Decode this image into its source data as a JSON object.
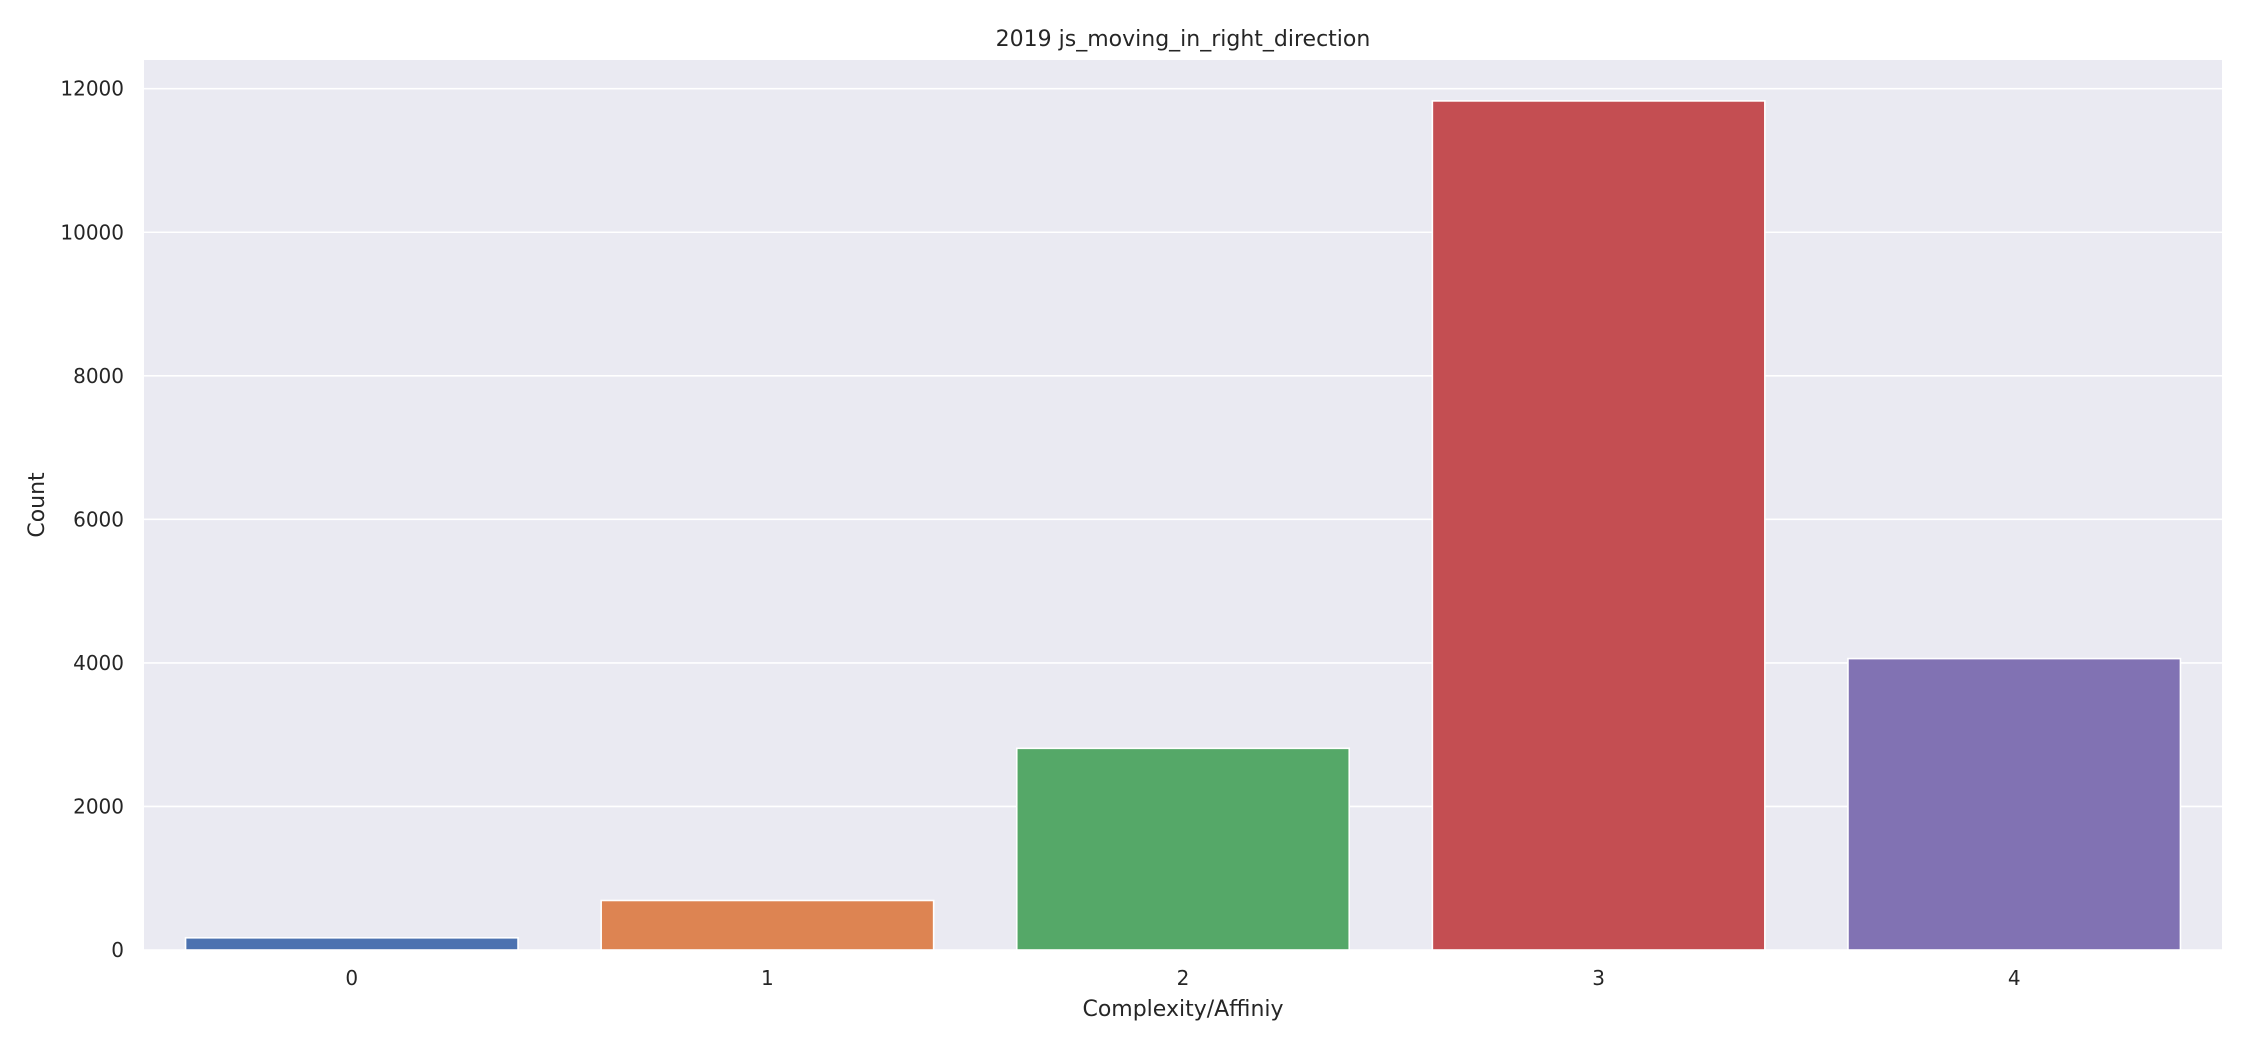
{
  "chart_data": {
    "type": "bar",
    "title": "2019 js_moving_in_right_direction",
    "xlabel": "Complexity/Affiniy",
    "ylabel": "Count",
    "categories": [
      "0",
      "1",
      "2",
      "3",
      "4"
    ],
    "values": [
      170,
      690,
      2810,
      11830,
      4060
    ],
    "ylim": [
      0,
      12400
    ],
    "yticks": [
      0,
      2000,
      4000,
      6000,
      8000,
      10000,
      12000
    ],
    "grid": true,
    "colors": [
      "#4c72b0",
      "#dd8452",
      "#55a868",
      "#c44e52",
      "#8172b3"
    ],
    "background": "#eaeaf2",
    "grid_color": "#ffffff"
  }
}
